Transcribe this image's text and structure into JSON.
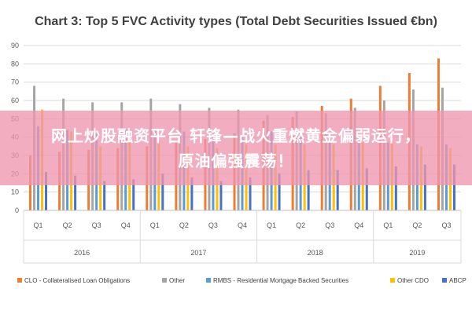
{
  "chart_data": {
    "type": "bar",
    "title": "Chart 3: Top 5 FVC Activity types (Total Debt Securities Issued €bn)",
    "xlabel": "",
    "ylabel": "",
    "ylim": [
      0,
      90
    ],
    "yticks": [
      0,
      10,
      20,
      30,
      40,
      50,
      60,
      70,
      80,
      90
    ],
    "grid": true,
    "legend_position": "bottom",
    "categories": [
      "Q1",
      "Q2",
      "Q3",
      "Q4",
      "Q1",
      "Q2",
      "Q3",
      "Q4",
      "Q1",
      "Q2",
      "Q3",
      "Q4",
      "Q1",
      "Q2",
      "Q3"
    ],
    "years": [
      {
        "label": "2016",
        "span": 4
      },
      {
        "label": "2017",
        "span": 4
      },
      {
        "label": "2018",
        "span": 4
      },
      {
        "label": "2019",
        "span": 3
      }
    ],
    "series": [
      {
        "name": "CLO - Collateralised Loan Obligations",
        "color": "#ED7D31",
        "values": [
          30,
          32,
          33,
          34,
          35,
          37,
          39,
          42,
          49,
          51,
          57,
          61,
          68,
          75,
          83
        ]
      },
      {
        "name": "Other",
        "color": "#A5A5A5",
        "values": [
          68,
          61,
          59,
          59,
          61,
          58,
          56,
          55,
          52,
          54,
          53,
          56,
          60,
          66,
          67
        ]
      },
      {
        "name": "RMBS - Residential Mortgage Backed Securities",
        "color": "#5B9BD5",
        "values": [
          46,
          44,
          42,
          44,
          44,
          43,
          42,
          41,
          43,
          42,
          40,
          40,
          37,
          36,
          36
        ]
      },
      {
        "name": "Other CDO",
        "color": "#FFC000",
        "values": [
          55,
          43,
          35,
          37,
          38,
          35,
          34,
          36,
          36,
          36,
          36,
          37,
          38,
          35,
          34
        ]
      },
      {
        "name": "ABCP",
        "color": "#4472C4",
        "values": [
          21,
          19,
          16,
          17,
          20,
          18,
          16,
          18,
          20,
          22,
          22,
          23,
          24,
          25,
          25
        ]
      }
    ]
  },
  "overlay": {
    "line1": "网上炒股融资平台 轩锋—战火重燃黄金偏弱运行，",
    "line2": "原油偏强震荡！"
  }
}
